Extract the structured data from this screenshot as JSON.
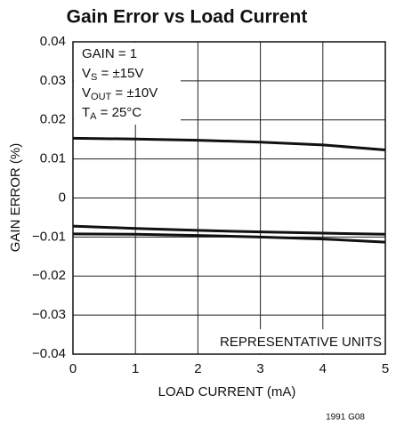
{
  "chart_data": {
    "type": "line",
    "title": "Gain Error vs Load Current",
    "xlabel": "LOAD CURRENT (mA)",
    "ylabel": "GAIN ERROR (%)",
    "x": [
      0,
      1,
      2,
      3,
      4,
      5
    ],
    "series": [
      {
        "color": "#111111",
        "values": [
          0.0153,
          0.0151,
          0.0148,
          0.0143,
          0.0136,
          0.0123
        ]
      },
      {
        "color": "#111111",
        "values": [
          -0.0072,
          -0.0078,
          -0.0083,
          -0.0087,
          -0.009,
          -0.0093
        ]
      },
      {
        "color": "#111111",
        "values": [
          -0.0092,
          -0.0093,
          -0.0096,
          -0.01,
          -0.0105,
          -0.0113
        ]
      }
    ],
    "xlim": [
      0,
      5
    ],
    "xticks": [
      0,
      1,
      2,
      3,
      4,
      5
    ],
    "ylim": [
      -0.04,
      0.04
    ],
    "yticks": [
      {
        "value": -0.04,
        "label": "−0.04"
      },
      {
        "value": -0.03,
        "label": "−0.03"
      },
      {
        "value": -0.02,
        "label": "−0.02"
      },
      {
        "value": -0.01,
        "label": "−0.01"
      },
      0,
      0.01,
      0.02,
      0.03,
      0.04
    ],
    "grid": true,
    "annotations": [
      {
        "main": "GAIN = 1"
      },
      {
        "main": "V",
        "sub": "S",
        "rest": " = ±15V"
      },
      {
        "main": "V",
        "sub": "OUT",
        "rest": " = ±10V"
      },
      {
        "main": "T",
        "sub": "A",
        "rest": " = 25°C"
      }
    ],
    "note": "REPRESENTATIVE UNITS",
    "footnote": "1991 G08"
  }
}
